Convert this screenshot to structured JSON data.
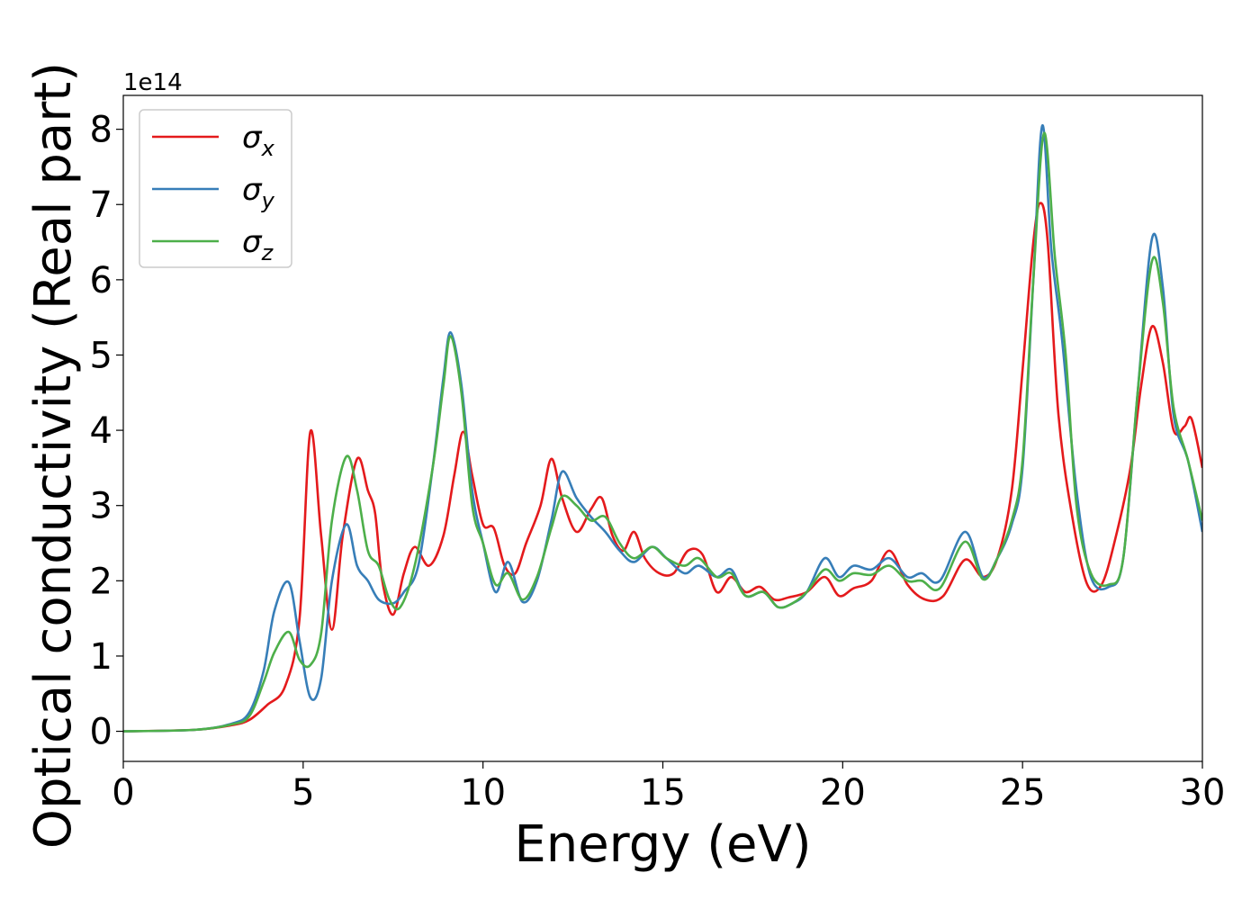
{
  "chart_data": {
    "type": "line",
    "title": "",
    "xlabel": "Energy (eV)",
    "ylabel": "Optical conductivity (Real part)",
    "y_offset_label": "1e14",
    "xlim": [
      0,
      30
    ],
    "ylim": [
      -0.4,
      8.45
    ],
    "x_ticks": [
      0,
      5,
      10,
      15,
      20,
      25,
      30
    ],
    "x_tick_labels": [
      "0",
      "5",
      "10",
      "15",
      "20",
      "25",
      "30"
    ],
    "y_ticks": [
      0,
      1,
      2,
      3,
      4,
      5,
      6,
      7,
      8
    ],
    "y_tick_labels": [
      "0",
      "1",
      "2",
      "3",
      "4",
      "5",
      "6",
      "7",
      "8"
    ],
    "grid": false,
    "legend_position": "top-left",
    "series": [
      {
        "name": "σx",
        "legend_main": "σ",
        "legend_sub": "x",
        "color": "#e41a1c",
        "points": [
          [
            0,
            0
          ],
          [
            2,
            0.02
          ],
          [
            3,
            0.08
          ],
          [
            3.5,
            0.15
          ],
          [
            4,
            0.35
          ],
          [
            4.5,
            0.6
          ],
          [
            4.9,
            1.5
          ],
          [
            5.2,
            3.98
          ],
          [
            5.5,
            2.6
          ],
          [
            5.8,
            1.35
          ],
          [
            6.1,
            2.6
          ],
          [
            6.5,
            3.62
          ],
          [
            6.8,
            3.2
          ],
          [
            7.0,
            2.9
          ],
          [
            7.2,
            2.0
          ],
          [
            7.5,
            1.55
          ],
          [
            7.8,
            2.1
          ],
          [
            8.1,
            2.45
          ],
          [
            8.5,
            2.2
          ],
          [
            8.9,
            2.6
          ],
          [
            9.2,
            3.4
          ],
          [
            9.45,
            3.98
          ],
          [
            9.7,
            3.4
          ],
          [
            10.0,
            2.75
          ],
          [
            10.3,
            2.7
          ],
          [
            10.6,
            2.2
          ],
          [
            10.9,
            2.1
          ],
          [
            11.2,
            2.5
          ],
          [
            11.6,
            3.0
          ],
          [
            11.9,
            3.62
          ],
          [
            12.2,
            3.1
          ],
          [
            12.6,
            2.65
          ],
          [
            13.0,
            2.95
          ],
          [
            13.3,
            3.1
          ],
          [
            13.6,
            2.6
          ],
          [
            13.9,
            2.4
          ],
          [
            14.2,
            2.65
          ],
          [
            14.5,
            2.3
          ],
          [
            14.9,
            2.1
          ],
          [
            15.3,
            2.1
          ],
          [
            15.7,
            2.4
          ],
          [
            16.1,
            2.35
          ],
          [
            16.5,
            1.85
          ],
          [
            16.9,
            2.05
          ],
          [
            17.3,
            1.85
          ],
          [
            17.7,
            1.92
          ],
          [
            18.1,
            1.75
          ],
          [
            18.5,
            1.78
          ],
          [
            19.0,
            1.85
          ],
          [
            19.5,
            2.05
          ],
          [
            19.9,
            1.8
          ],
          [
            20.3,
            1.9
          ],
          [
            20.8,
            2.0
          ],
          [
            21.3,
            2.4
          ],
          [
            21.8,
            1.95
          ],
          [
            22.3,
            1.75
          ],
          [
            22.8,
            1.8
          ],
          [
            23.4,
            2.28
          ],
          [
            23.9,
            2.05
          ],
          [
            24.3,
            2.3
          ],
          [
            24.7,
            3.2
          ],
          [
            25.0,
            4.8
          ],
          [
            25.3,
            6.5
          ],
          [
            25.5,
            7.02
          ],
          [
            25.7,
            6.5
          ],
          [
            26.0,
            4.2
          ],
          [
            26.4,
            2.8
          ],
          [
            26.8,
            1.95
          ],
          [
            27.2,
            1.95
          ],
          [
            27.6,
            2.6
          ],
          [
            28.0,
            3.5
          ],
          [
            28.3,
            4.6
          ],
          [
            28.6,
            5.38
          ],
          [
            28.9,
            4.9
          ],
          [
            29.2,
            4.0
          ],
          [
            29.5,
            4.05
          ],
          [
            29.7,
            4.15
          ],
          [
            30,
            3.5
          ]
        ]
      },
      {
        "name": "σy",
        "legend_main": "σ",
        "legend_sub": "y",
        "color": "#377eb8",
        "points": [
          [
            0,
            0
          ],
          [
            2,
            0.02
          ],
          [
            3,
            0.1
          ],
          [
            3.5,
            0.25
          ],
          [
            3.9,
            0.8
          ],
          [
            4.2,
            1.6
          ],
          [
            4.6,
            1.98
          ],
          [
            4.9,
            1.2
          ],
          [
            5.2,
            0.45
          ],
          [
            5.5,
            0.7
          ],
          [
            5.8,
            2.0
          ],
          [
            6.2,
            2.75
          ],
          [
            6.5,
            2.2
          ],
          [
            6.8,
            2.0
          ],
          [
            7.1,
            1.75
          ],
          [
            7.5,
            1.7
          ],
          [
            7.8,
            1.85
          ],
          [
            8.2,
            2.2
          ],
          [
            8.6,
            3.5
          ],
          [
            8.9,
            4.7
          ],
          [
            9.1,
            5.3
          ],
          [
            9.4,
            4.6
          ],
          [
            9.7,
            3.2
          ],
          [
            10.0,
            2.5
          ],
          [
            10.35,
            1.85
          ],
          [
            10.7,
            2.25
          ],
          [
            11.1,
            1.72
          ],
          [
            11.5,
            2.0
          ],
          [
            11.9,
            2.8
          ],
          [
            12.2,
            3.45
          ],
          [
            12.6,
            3.1
          ],
          [
            13.0,
            2.85
          ],
          [
            13.4,
            2.65
          ],
          [
            13.8,
            2.4
          ],
          [
            14.2,
            2.25
          ],
          [
            14.7,
            2.45
          ],
          [
            15.1,
            2.3
          ],
          [
            15.6,
            2.1
          ],
          [
            16.0,
            2.2
          ],
          [
            16.5,
            2.05
          ],
          [
            16.9,
            2.15
          ],
          [
            17.3,
            1.8
          ],
          [
            17.8,
            1.85
          ],
          [
            18.2,
            1.65
          ],
          [
            18.6,
            1.7
          ],
          [
            19.0,
            1.85
          ],
          [
            19.5,
            2.3
          ],
          [
            19.9,
            2.05
          ],
          [
            20.3,
            2.2
          ],
          [
            20.8,
            2.15
          ],
          [
            21.3,
            2.3
          ],
          [
            21.8,
            2.05
          ],
          [
            22.2,
            2.1
          ],
          [
            22.7,
            2.0
          ],
          [
            23.4,
            2.65
          ],
          [
            23.9,
            2.05
          ],
          [
            24.3,
            2.3
          ],
          [
            24.7,
            2.75
          ],
          [
            25.0,
            3.5
          ],
          [
            25.3,
            6.0
          ],
          [
            25.55,
            8.05
          ],
          [
            25.8,
            6.4
          ],
          [
            26.1,
            5.2
          ],
          [
            26.5,
            3.2
          ],
          [
            26.9,
            2.05
          ],
          [
            27.4,
            1.92
          ],
          [
            27.8,
            2.3
          ],
          [
            28.2,
            4.5
          ],
          [
            28.6,
            6.55
          ],
          [
            28.9,
            5.9
          ],
          [
            29.2,
            4.2
          ],
          [
            29.6,
            3.6
          ],
          [
            30,
            2.65
          ]
        ]
      },
      {
        "name": "σz",
        "legend_main": "σ",
        "legend_sub": "z",
        "color": "#4daf4a",
        "points": [
          [
            0,
            0
          ],
          [
            2,
            0.02
          ],
          [
            3,
            0.09
          ],
          [
            3.5,
            0.2
          ],
          [
            3.9,
            0.65
          ],
          [
            4.2,
            1.05
          ],
          [
            4.6,
            1.32
          ],
          [
            4.9,
            0.95
          ],
          [
            5.2,
            0.88
          ],
          [
            5.5,
            1.3
          ],
          [
            5.8,
            2.8
          ],
          [
            6.2,
            3.65
          ],
          [
            6.5,
            3.2
          ],
          [
            6.8,
            2.4
          ],
          [
            7.1,
            2.2
          ],
          [
            7.4,
            1.75
          ],
          [
            7.7,
            1.65
          ],
          [
            8.1,
            2.2
          ],
          [
            8.6,
            3.5
          ],
          [
            8.9,
            4.6
          ],
          [
            9.1,
            5.25
          ],
          [
            9.4,
            4.5
          ],
          [
            9.7,
            3.0
          ],
          [
            10.0,
            2.5
          ],
          [
            10.35,
            1.95
          ],
          [
            10.7,
            2.1
          ],
          [
            11.1,
            1.75
          ],
          [
            11.5,
            2.05
          ],
          [
            11.9,
            2.7
          ],
          [
            12.2,
            3.12
          ],
          [
            12.6,
            3.0
          ],
          [
            13.0,
            2.8
          ],
          [
            13.4,
            2.85
          ],
          [
            13.8,
            2.5
          ],
          [
            14.2,
            2.3
          ],
          [
            14.7,
            2.45
          ],
          [
            15.1,
            2.3
          ],
          [
            15.6,
            2.2
          ],
          [
            16.0,
            2.3
          ],
          [
            16.5,
            2.05
          ],
          [
            16.9,
            2.1
          ],
          [
            17.3,
            1.8
          ],
          [
            17.8,
            1.85
          ],
          [
            18.2,
            1.65
          ],
          [
            18.6,
            1.7
          ],
          [
            19.0,
            1.85
          ],
          [
            19.5,
            2.15
          ],
          [
            19.9,
            2.0
          ],
          [
            20.3,
            2.1
          ],
          [
            20.8,
            2.08
          ],
          [
            21.3,
            2.2
          ],
          [
            21.8,
            2.0
          ],
          [
            22.2,
            2.0
          ],
          [
            22.7,
            1.9
          ],
          [
            23.4,
            2.52
          ],
          [
            23.9,
            2.02
          ],
          [
            24.3,
            2.3
          ],
          [
            24.7,
            2.8
          ],
          [
            25.0,
            3.6
          ],
          [
            25.3,
            6.0
          ],
          [
            25.6,
            7.95
          ],
          [
            25.9,
            6.3
          ],
          [
            26.2,
            5.0
          ],
          [
            26.5,
            3.0
          ],
          [
            26.9,
            2.1
          ],
          [
            27.4,
            1.95
          ],
          [
            27.8,
            2.3
          ],
          [
            28.2,
            4.5
          ],
          [
            28.6,
            6.25
          ],
          [
            28.9,
            5.7
          ],
          [
            29.2,
            4.3
          ],
          [
            29.6,
            3.6
          ],
          [
            30,
            2.8
          ]
        ]
      }
    ]
  }
}
